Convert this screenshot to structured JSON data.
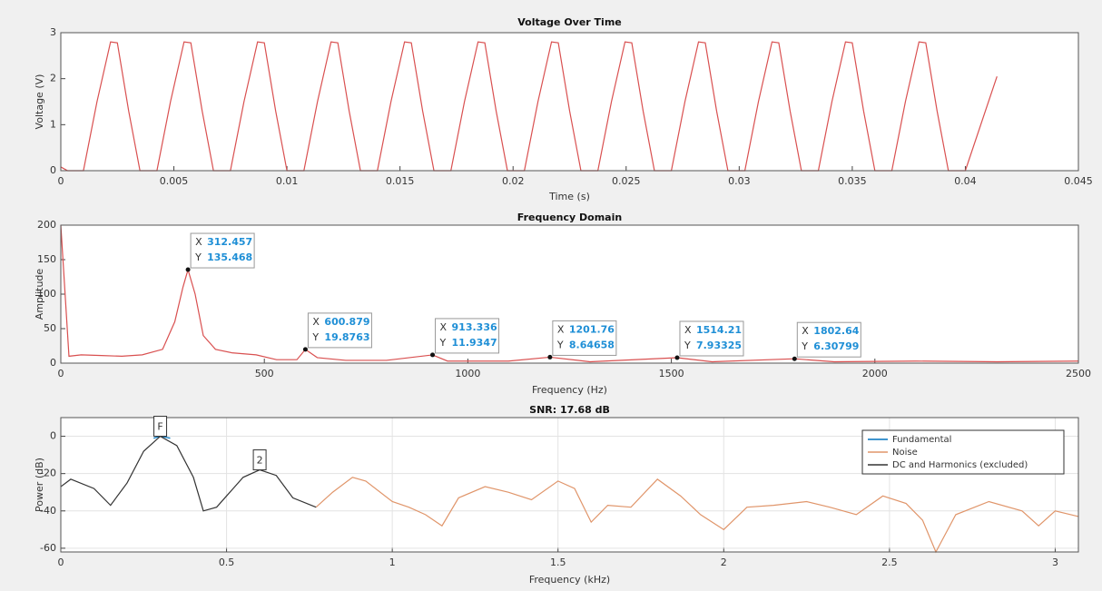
{
  "chart_data": [
    {
      "type": "line",
      "title": "Voltage Over Time",
      "xlabel": "Time (s)",
      "ylabel": "Voltage (V)",
      "xlim": [
        0,
        0.045
      ],
      "xticks": [
        0,
        0.005,
        0.01,
        0.015,
        0.02,
        0.025,
        0.03,
        0.035,
        0.04,
        0.045
      ],
      "ylim": [
        0,
        3
      ],
      "yticks": [
        0,
        1,
        2,
        3
      ],
      "grid": false,
      "series": [
        {
          "color": "#d95050",
          "x": [
            0,
            0.0003,
            0.001,
            0.0016,
            0.0022,
            0.0025,
            0.003,
            0.0035,
            0.00425,
            0.00485,
            0.00545,
            0.00575,
            0.00625,
            0.00675,
            0.0075,
            0.0081,
            0.0087,
            0.009,
            0.0095,
            0.01,
            0.01075,
            0.01135,
            0.01195,
            0.01225,
            0.01275,
            0.01325,
            0.014,
            0.0146,
            0.0152,
            0.0155,
            0.016,
            0.0165,
            0.01725,
            0.01785,
            0.01845,
            0.01875,
            0.01925,
            0.01975,
            0.0205,
            0.0211,
            0.0217,
            0.022,
            0.0225,
            0.023,
            0.02375,
            0.02435,
            0.02495,
            0.02525,
            0.02575,
            0.02625,
            0.027,
            0.0276,
            0.0282,
            0.0285,
            0.029,
            0.0295,
            0.03025,
            0.03085,
            0.03145,
            0.03175,
            0.03225,
            0.03275,
            0.0335,
            0.0341,
            0.0347,
            0.035,
            0.0355,
            0.036,
            0.03675,
            0.03735,
            0.03795,
            0.03825,
            0.03875,
            0.03925,
            0.04,
            0.0414
          ],
          "values": [
            0.08,
            0,
            0,
            1.5,
            2.8,
            2.78,
            1.3,
            0,
            0,
            1.5,
            2.8,
            2.78,
            1.3,
            0,
            0,
            1.5,
            2.8,
            2.78,
            1.3,
            0,
            0,
            1.5,
            2.8,
            2.78,
            1.3,
            0,
            0,
            1.5,
            2.8,
            2.78,
            1.3,
            0,
            0,
            1.5,
            2.8,
            2.78,
            1.3,
            0,
            0,
            1.5,
            2.8,
            2.78,
            1.3,
            0,
            0,
            1.5,
            2.8,
            2.78,
            1.3,
            0,
            0,
            1.5,
            2.8,
            2.78,
            1.3,
            0,
            0,
            1.5,
            2.8,
            2.78,
            1.3,
            0,
            0,
            1.5,
            2.8,
            2.78,
            1.3,
            0,
            0,
            1.5,
            2.8,
            2.78,
            1.3,
            0,
            0,
            2.05
          ]
        }
      ]
    },
    {
      "type": "line",
      "title": "Frequency Domain",
      "xlabel": "Frequency (Hz)",
      "ylabel": "Amplitude",
      "xlim": [
        0,
        2500
      ],
      "xticks": [
        0,
        500,
        1000,
        1500,
        2000,
        2500
      ],
      "ylim": [
        0,
        200
      ],
      "yticks": [
        0,
        50,
        100,
        150,
        200
      ],
      "grid": false,
      "series": [
        {
          "color": "#d95050",
          "x": [
            0,
            20,
            50,
            100,
            150,
            200,
            250,
            280,
            300,
            312.457,
            330,
            350,
            380,
            420,
            480,
            530,
            580,
            600.879,
            630,
            700,
            800,
            913.336,
            950,
            1100,
            1201.76,
            1300,
            1514.21,
            1600,
            1802.64,
            1900,
            2100,
            2300,
            2500
          ],
          "values": [
            200,
            10,
            12,
            11,
            10,
            12,
            20,
            60,
            110,
            135.468,
            100,
            40,
            20,
            15,
            12,
            5,
            5,
            19.8763,
            8,
            4,
            4,
            11.9347,
            3,
            3,
            8.64658,
            2,
            7.93325,
            2,
            6.30799,
            2,
            3,
            2,
            3
          ]
        }
      ],
      "datatip_labels": [
        "X",
        "Y"
      ],
      "datatips": [
        {
          "x": 312.457,
          "y": 135.468
        },
        {
          "x": 600.879,
          "y": 19.8763
        },
        {
          "x": 913.336,
          "y": 11.9347
        },
        {
          "x": 1201.76,
          "y": 8.64658
        },
        {
          "x": 1514.21,
          "y": 7.93325
        },
        {
          "x": 1802.64,
          "y": 6.30799
        }
      ]
    },
    {
      "type": "line",
      "title": "SNR:  17.68 dB",
      "xlabel": "Frequency (kHz)",
      "ylabel": "Power (dB)",
      "xlim": [
        0,
        3.07
      ],
      "xticks": [
        0,
        0.5,
        1,
        1.5,
        2,
        2.5,
        3
      ],
      "ylim": [
        -62,
        10
      ],
      "yticks": [
        -60,
        -40,
        -20,
        0
      ],
      "grid": true,
      "legend": "northeast",
      "series": [
        {
          "name": "Fundamental",
          "color": "#0072bd",
          "x": [
            0.28,
            0.3,
            0.33
          ],
          "values": [
            -1,
            0,
            -1
          ]
        },
        {
          "name": "Noise",
          "color": "#e0956a",
          "x": [
            0.77,
            0.82,
            0.88,
            0.92,
            1,
            1.05,
            1.1,
            1.15,
            1.2,
            1.28,
            1.35,
            1.42,
            1.5,
            1.55,
            1.6,
            1.65,
            1.72,
            1.8,
            1.87,
            1.93,
            2,
            2.07,
            2.15,
            2.25,
            2.32,
            2.4,
            2.48,
            2.55,
            2.6,
            2.64,
            2.7,
            2.8,
            2.9,
            2.95,
            3,
            3.07
          ],
          "values": [
            -38,
            -30,
            -22,
            -24,
            -35,
            -38,
            -42,
            -48,
            -33,
            -27,
            -30,
            -34,
            -24,
            -28,
            -46,
            -37,
            -38,
            -23,
            -32,
            -42,
            -50,
            -38,
            -37,
            -35,
            -38,
            -42,
            -32,
            -36,
            -45,
            -62,
            -42,
            -35,
            -40,
            -48,
            -40,
            -43
          ]
        },
        {
          "name": "DC and Harmonics (excluded)",
          "color": "#333333",
          "x": [
            0,
            0.03,
            0.1,
            0.15,
            0.2,
            0.25,
            0.3,
            0.35,
            0.4,
            0.43,
            0.47,
            0.5,
            0.55,
            0.6,
            0.65,
            0.7,
            0.77
          ],
          "values": [
            -27,
            -23,
            -28,
            -37,
            -25,
            -8,
            0,
            -5,
            -22,
            -40,
            -38,
            -32,
            -22,
            -18,
            -21,
            -33,
            -38
          ]
        }
      ],
      "markers": [
        {
          "label": "F",
          "x": 0.3,
          "y": 0
        },
        {
          "label": "2",
          "x": 0.6,
          "y": -18
        }
      ]
    }
  ]
}
